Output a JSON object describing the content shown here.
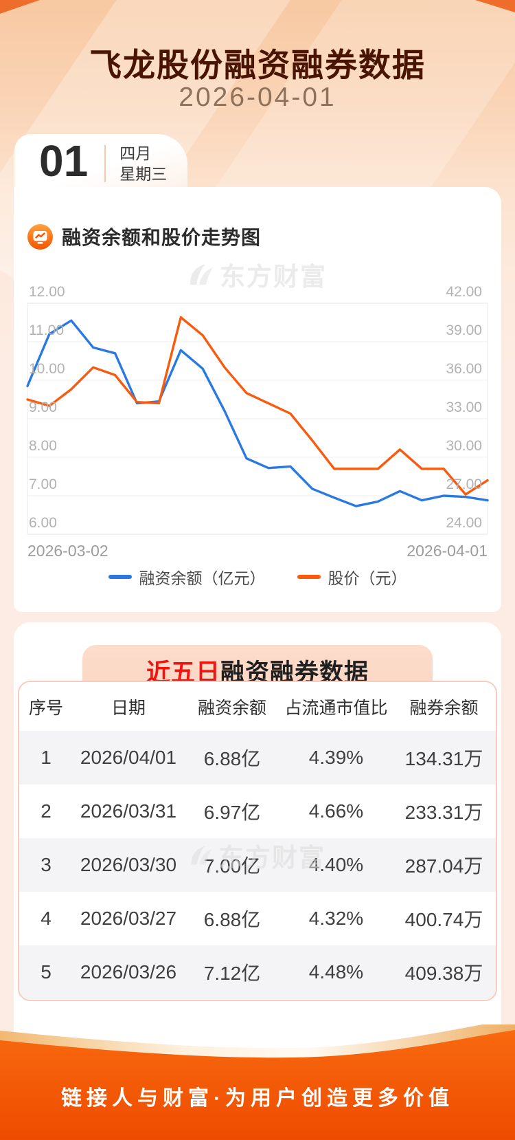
{
  "header": {
    "title": "飞龙股份融资融券数据",
    "date": "2026-04-01"
  },
  "date_badge": {
    "day": "01",
    "month": "四月",
    "weekday": "星期三"
  },
  "chart_section": {
    "title": "融资余额和股价走势图",
    "watermark": "东方财富",
    "chart_data": {
      "type": "line",
      "title": "融资余额和股价走势图",
      "x_axis_labels": [
        "2026-03-02",
        "2026-04-01"
      ],
      "grid": true,
      "legend_position": "bottom",
      "left_axis": {
        "min": 6,
        "max": 12,
        "ticks": [
          "12.00",
          "11.00",
          "10.00",
          "9.00",
          "8.00",
          "7.00",
          "6.00"
        ]
      },
      "right_axis": {
        "min": 24,
        "max": 42,
        "ticks": [
          "42.00",
          "39.00",
          "36.00",
          "33.00",
          "30.00",
          "27.00",
          "24.00"
        ]
      },
      "series": [
        {
          "name": "融资余额（亿元）",
          "axis": "left",
          "color": "#2a79e2",
          "values": [
            9.85,
            11.2,
            11.55,
            10.85,
            10.7,
            9.4,
            9.45,
            10.78,
            10.3,
            9.2,
            7.97,
            7.72,
            7.76,
            7.18,
            6.95,
            6.73,
            6.85,
            7.12,
            6.88,
            7.0,
            6.97,
            6.88
          ]
        },
        {
          "name": "股价（元）",
          "axis": "right",
          "color": "#fa5a0e",
          "values": [
            34.5,
            34.0,
            35.3,
            37.0,
            36.4,
            34.3,
            34.2,
            40.9,
            39.5,
            37.0,
            35.0,
            34.2,
            33.4,
            31.3,
            29.1,
            29.1,
            29.1,
            30.6,
            29.1,
            29.1,
            27.1,
            28.2
          ]
        }
      ]
    }
  },
  "table_section": {
    "title_highlight": "近五日",
    "title_rest": "融资融券数据",
    "watermark": "东方财富",
    "columns": [
      "序号",
      "日期",
      "融资余额",
      "占流通市值比",
      "融券余额"
    ],
    "rows": [
      [
        "1",
        "2026/04/01",
        "6.88亿",
        "4.39%",
        "134.31万"
      ],
      [
        "2",
        "2026/03/31",
        "6.97亿",
        "4.66%",
        "233.31万"
      ],
      [
        "3",
        "2026/03/30",
        "7.00亿",
        "4.40%",
        "287.04万"
      ],
      [
        "4",
        "2026/03/27",
        "6.88亿",
        "4.32%",
        "400.74万"
      ],
      [
        "5",
        "2026/03/26",
        "7.12亿",
        "4.48%",
        "409.38万"
      ]
    ]
  },
  "footer": {
    "slogan": "链接人与财富·为用户创造更多价值"
  },
  "colors": {
    "accent_orange": "#f55a00",
    "footer_orange": "#f25503",
    "title_brown": "#4a1403",
    "highlight_red": "#f2120f",
    "line_blue": "#2a79e2",
    "line_orange": "#fa5a0e"
  }
}
